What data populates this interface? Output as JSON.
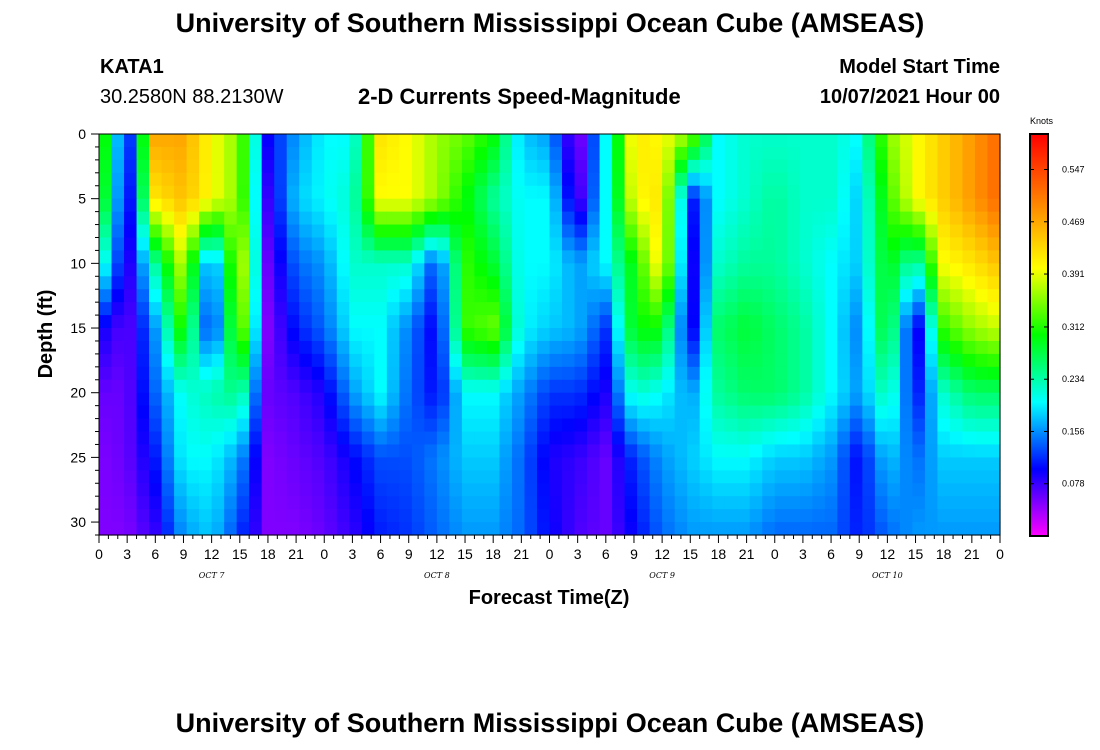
{
  "header": {
    "title": "University of Southern Mississippi Ocean Cube (AMSEAS)",
    "station_id": "KATA1",
    "station_coords": "30.2580N  88.2130W",
    "product": "2-D Currents Speed-Magnitude",
    "model_start_label": "Model Start Time",
    "model_start_value": "10/07/2021 Hour 00"
  },
  "footer": {
    "title": "University of Southern Mississippi Ocean Cube (AMSEAS)"
  },
  "chart_data": {
    "type": "heatmap",
    "xlabel": "Forecast Time(Z)",
    "ylabel": "Depth (ft)",
    "x_tick_labels": [
      "0",
      "3",
      "6",
      "9",
      "12",
      "15",
      "18",
      "21",
      "0",
      "3",
      "6",
      "9",
      "12",
      "15",
      "18",
      "21",
      "0",
      "3",
      "6",
      "9",
      "12",
      "15",
      "18",
      "21",
      "0",
      "3",
      "6",
      "9",
      "12",
      "15",
      "18",
      "21",
      "0"
    ],
    "day_labels": [
      "OCT 7",
      "OCT 8",
      "OCT 9",
      "OCT 10"
    ],
    "x_range_hours": [
      0,
      96
    ],
    "y_tick_labels": [
      "0",
      "5",
      "10",
      "15",
      "20",
      "25",
      "30"
    ],
    "ylim": [
      0,
      31
    ],
    "y_inverted": true,
    "colorbar": {
      "unit": "Knots",
      "ticks": [
        "0.547",
        "0.469",
        "0.391",
        "0.312",
        "0.234",
        "0.156",
        "0.078"
      ],
      "range": [
        0,
        0.6
      ],
      "colors": [
        "#ff00ff",
        "#0000ff",
        "#00ffff",
        "#00ff00",
        "#ffff00",
        "#ff8000",
        "#ff0000"
      ]
    },
    "hours": [
      0,
      3,
      6,
      9,
      12,
      15,
      18,
      21,
      24,
      27,
      30,
      33,
      36,
      39,
      42,
      45,
      48,
      51,
      54,
      57,
      60,
      63,
      66,
      69,
      72,
      75,
      78,
      81,
      84,
      87,
      90,
      93,
      96
    ],
    "depths": [
      0,
      5,
      10,
      15,
      20,
      25,
      31
    ],
    "speed_knots": [
      [
        0.36,
        0.08,
        0.47,
        0.47,
        0.4,
        0.35,
        0.1,
        0.16,
        0.2,
        0.2,
        0.42,
        0.4,
        0.36,
        0.34,
        0.3,
        0.18,
        0.16,
        0.04,
        0.2,
        0.42,
        0.4,
        0.36,
        0.2,
        0.22,
        0.22,
        0.22,
        0.22,
        0.2,
        0.35,
        0.4,
        0.44,
        0.48,
        0.52
      ],
      [
        0.34,
        0.07,
        0.42,
        0.45,
        0.4,
        0.35,
        0.08,
        0.18,
        0.2,
        0.22,
        0.4,
        0.4,
        0.36,
        0.3,
        0.24,
        0.2,
        0.2,
        0.06,
        0.2,
        0.4,
        0.42,
        0.1,
        0.2,
        0.22,
        0.24,
        0.22,
        0.22,
        0.18,
        0.32,
        0.4,
        0.44,
        0.48,
        0.52
      ],
      [
        0.24,
        0.07,
        0.24,
        0.38,
        0.12,
        0.4,
        0.06,
        0.14,
        0.16,
        0.22,
        0.22,
        0.22,
        0.12,
        0.32,
        0.28,
        0.2,
        0.2,
        0.16,
        0.2,
        0.3,
        0.42,
        0.08,
        0.22,
        0.24,
        0.24,
        0.22,
        0.2,
        0.18,
        0.3,
        0.22,
        0.4,
        0.42,
        0.45
      ],
      [
        0.1,
        0.06,
        0.16,
        0.32,
        0.09,
        0.37,
        0.05,
        0.11,
        0.14,
        0.2,
        0.2,
        0.15,
        0.09,
        0.32,
        0.34,
        0.2,
        0.18,
        0.17,
        0.12,
        0.3,
        0.3,
        0.08,
        0.26,
        0.28,
        0.26,
        0.24,
        0.2,
        0.15,
        0.3,
        0.07,
        0.32,
        0.36,
        0.38
      ],
      [
        0.06,
        0.06,
        0.14,
        0.21,
        0.23,
        0.25,
        0.06,
        0.07,
        0.09,
        0.16,
        0.2,
        0.14,
        0.1,
        0.2,
        0.2,
        0.16,
        0.12,
        0.12,
        0.09,
        0.22,
        0.2,
        0.16,
        0.24,
        0.26,
        0.26,
        0.24,
        0.2,
        0.16,
        0.24,
        0.1,
        0.22,
        0.26,
        0.26
      ],
      [
        0.05,
        0.06,
        0.11,
        0.2,
        0.2,
        0.16,
        0.05,
        0.06,
        0.07,
        0.1,
        0.13,
        0.13,
        0.15,
        0.18,
        0.18,
        0.14,
        0.09,
        0.08,
        0.06,
        0.12,
        0.16,
        0.18,
        0.2,
        0.2,
        0.18,
        0.18,
        0.16,
        0.1,
        0.18,
        0.14,
        0.18,
        0.18,
        0.18
      ],
      [
        0.05,
        0.05,
        0.08,
        0.16,
        0.18,
        0.12,
        0.05,
        0.05,
        0.06,
        0.08,
        0.11,
        0.12,
        0.14,
        0.16,
        0.16,
        0.14,
        0.1,
        0.07,
        0.06,
        0.1,
        0.14,
        0.16,
        0.16,
        0.16,
        0.14,
        0.14,
        0.14,
        0.11,
        0.14,
        0.16,
        0.16,
        0.16,
        0.16
      ]
    ]
  }
}
